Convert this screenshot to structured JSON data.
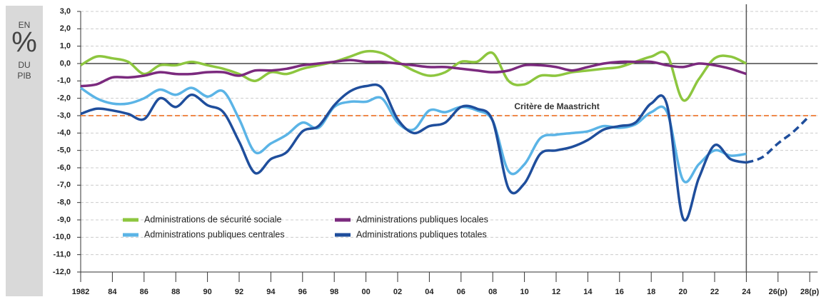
{
  "chart_data": {
    "type": "line",
    "ylabel_lines": [
      "EN",
      "%",
      "DU",
      "PIB"
    ],
    "annotation": "Critère de Maastricht",
    "reference_line": {
      "value": -3,
      "color": "#f08a4b"
    },
    "divider_x": 2024,
    "legend": "lower left",
    "grid": true,
    "x": [
      1982,
      1983,
      1984,
      1985,
      1986,
      1987,
      1988,
      1989,
      1990,
      1991,
      1992,
      1993,
      1994,
      1995,
      1996,
      1997,
      1998,
      1999,
      2000,
      2001,
      2002,
      2003,
      2004,
      2005,
      2006,
      2007,
      2008,
      2009,
      2010,
      2011,
      2012,
      2013,
      2014,
      2015,
      2016,
      2017,
      2018,
      2019,
      2020,
      2021,
      2022,
      2023,
      2024
    ],
    "series": [
      {
        "name": "Administrations de sécurité sociale",
        "color": "#8dc63f",
        "values": [
          -0.1,
          0.4,
          0.3,
          0.1,
          -0.6,
          -0.1,
          -0.1,
          0.1,
          -0.1,
          -0.3,
          -0.6,
          -1.0,
          -0.5,
          -0.6,
          -0.3,
          -0.1,
          0.1,
          0.4,
          0.7,
          0.6,
          0.1,
          -0.4,
          -0.7,
          -0.5,
          0.1,
          0.1,
          0.6,
          -1.0,
          -1.2,
          -0.7,
          -0.7,
          -0.5,
          -0.4,
          -0.3,
          -0.2,
          0.1,
          0.4,
          0.5,
          -2.1,
          -0.9,
          0.3,
          0.4,
          0.0
        ]
      },
      {
        "name": "Administrations publiques locales",
        "color": "#7b2a7e",
        "values": [
          -1.3,
          -1.2,
          -0.8,
          -0.8,
          -0.7,
          -0.5,
          -0.6,
          -0.6,
          -0.5,
          -0.5,
          -0.7,
          -0.4,
          -0.4,
          -0.3,
          -0.1,
          0.0,
          0.1,
          0.2,
          0.1,
          0.1,
          0.0,
          -0.1,
          -0.2,
          -0.2,
          -0.3,
          -0.4,
          -0.5,
          -0.4,
          -0.1,
          -0.1,
          -0.2,
          -0.4,
          -0.2,
          0.0,
          0.1,
          0.1,
          0.1,
          -0.1,
          -0.2,
          0.0,
          -0.1,
          -0.3,
          -0.6
        ]
      },
      {
        "name": "Administrations publiques centrales",
        "color": "#5bb4e6",
        "values": [
          -1.4,
          -2.0,
          -2.3,
          -2.3,
          -2.0,
          -1.5,
          -1.8,
          -1.4,
          -1.9,
          -1.6,
          -3.2,
          -5.1,
          -4.6,
          -4.1,
          -3.4,
          -3.7,
          -2.5,
          -2.2,
          -2.2,
          -2.0,
          -3.4,
          -3.8,
          -2.7,
          -2.8,
          -2.5,
          -2.7,
          -3.3,
          -6.2,
          -5.8,
          -4.3,
          -4.1,
          -4.0,
          -3.9,
          -3.6,
          -3.7,
          -3.5,
          -2.8,
          -2.8,
          -6.7,
          -5.8,
          -5.0,
          -5.3,
          -5.2
        ]
      },
      {
        "name": "Administrations publiques totales",
        "color": "#1f4e9c",
        "values": [
          -2.9,
          -2.6,
          -2.7,
          -2.9,
          -3.2,
          -2.0,
          -2.5,
          -1.8,
          -2.4,
          -2.8,
          -4.5,
          -6.3,
          -5.5,
          -5.1,
          -3.9,
          -3.6,
          -2.4,
          -1.6,
          -1.3,
          -1.4,
          -3.2,
          -4.0,
          -3.6,
          -3.4,
          -2.5,
          -2.6,
          -3.3,
          -7.2,
          -6.9,
          -5.2,
          -5.0,
          -4.8,
          -4.4,
          -3.8,
          -3.6,
          -3.4,
          -2.3,
          -2.4,
          -8.9,
          -6.6,
          -4.7,
          -5.5,
          -5.7
        ],
        "projection": {
          "x": [
            2024,
            2025,
            2026,
            2027,
            2028
          ],
          "values": [
            -5.7,
            -5.4,
            -4.6,
            -3.9,
            -3.0
          ]
        }
      }
    ],
    "xlim": [
      1982,
      2028.5
    ],
    "xticks": [
      {
        "value": 1982,
        "label": "1982"
      },
      {
        "value": 1984,
        "label": "84"
      },
      {
        "value": 1986,
        "label": "86"
      },
      {
        "value": 1988,
        "label": "88"
      },
      {
        "value": 1990,
        "label": "90"
      },
      {
        "value": 1992,
        "label": "92"
      },
      {
        "value": 1994,
        "label": "94"
      },
      {
        "value": 1996,
        "label": "96"
      },
      {
        "value": 1998,
        "label": "98"
      },
      {
        "value": 2000,
        "label": "00"
      },
      {
        "value": 2002,
        "label": "02"
      },
      {
        "value": 2004,
        "label": "04"
      },
      {
        "value": 2006,
        "label": "06"
      },
      {
        "value": 2008,
        "label": "08"
      },
      {
        "value": 2010,
        "label": "10"
      },
      {
        "value": 2012,
        "label": "12"
      },
      {
        "value": 2014,
        "label": "14"
      },
      {
        "value": 2016,
        "label": "16"
      },
      {
        "value": 2018,
        "label": "18"
      },
      {
        "value": 2020,
        "label": "20"
      },
      {
        "value": 2022,
        "label": "22"
      },
      {
        "value": 2024,
        "label": "24"
      },
      {
        "value": 2026,
        "label": "26(p)"
      },
      {
        "value": 2028,
        "label": "28(p)"
      }
    ],
    "ylim": [
      -12,
      3
    ],
    "yticks": [
      {
        "value": 3,
        "label": "3,0"
      },
      {
        "value": 2,
        "label": "2,0"
      },
      {
        "value": 1,
        "label": "1,0"
      },
      {
        "value": 0,
        "label": "0,0"
      },
      {
        "value": -1,
        "label": "-1,0"
      },
      {
        "value": -2,
        "label": "-2,0"
      },
      {
        "value": -3,
        "label": "-3,0"
      },
      {
        "value": -4,
        "label": "-4,0"
      },
      {
        "value": -5,
        "label": "-5,0"
      },
      {
        "value": -6,
        "label": "-6,0"
      },
      {
        "value": -7,
        "label": "-7,0"
      },
      {
        "value": -8,
        "label": "-8,0"
      },
      {
        "value": -9,
        "label": "-9,0"
      },
      {
        "value": -10,
        "label": "-10,0"
      },
      {
        "value": -11,
        "label": "-11,0"
      },
      {
        "value": -12,
        "label": "-12,0"
      }
    ]
  }
}
